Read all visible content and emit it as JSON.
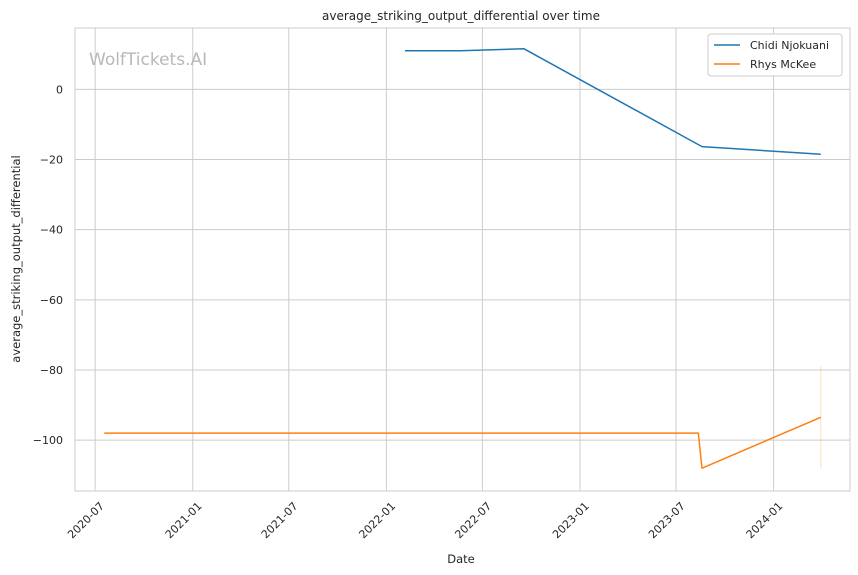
{
  "chart_data": {
    "type": "line",
    "title": "average_striking_output_differential over time",
    "xlabel": "Date",
    "ylabel": "average_striking_output_differential",
    "watermark": "WolfTickets.AI",
    "x_ticks": [
      "2020-07",
      "2021-01",
      "2021-07",
      "2022-01",
      "2022-07",
      "2023-01",
      "2023-07",
      "2024-01"
    ],
    "y_ticks": [
      0,
      -20,
      -40,
      -60,
      -80,
      -100
    ],
    "xlim": [
      "2020-05-24",
      "2024-05-24"
    ],
    "ylim": [
      -114.5,
      17.5
    ],
    "grid": true,
    "legend_position": "top-right",
    "series": [
      {
        "name": "Chidi Njokuani",
        "color": "#1f77b4",
        "points": [
          {
            "x": "2022-02-05",
            "y": 11.0
          },
          {
            "x": "2022-05-21",
            "y": 11.0
          },
          {
            "x": "2022-09-17",
            "y": 11.6
          },
          {
            "x": "2023-08-19",
            "y": -16.3
          },
          {
            "x": "2024-03-30",
            "y": -18.5
          }
        ]
      },
      {
        "name": "Rhys McKee",
        "color": "#ff7f0e",
        "points": [
          {
            "x": "2020-07-18",
            "y": -98.0
          },
          {
            "x": "2023-08-12",
            "y": -98.0
          },
          {
            "x": "2023-08-19",
            "y": -108.0
          },
          {
            "x": "2024-03-30",
            "y": -93.5
          }
        ],
        "error_band": {
          "x": "2024-03-30",
          "low": -108.0,
          "high": -79.0
        }
      }
    ]
  }
}
